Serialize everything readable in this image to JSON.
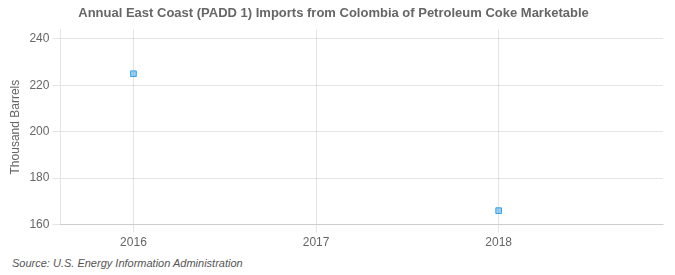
{
  "chart_data": {
    "type": "scatter",
    "title": "Annual East Coast (PADD 1) Imports from Colombia of Petroleum Coke Marketable",
    "y_label": "Thousand Barrels",
    "annotations": [
      "Source: U.S. Energy Information Administration"
    ],
    "x": [
      2016,
      2018
    ],
    "values": [
      225,
      166
    ],
    "marker": "square",
    "xlim": [
      2015.6,
      2018.9
    ],
    "xticks": [
      2016,
      2017,
      2018
    ],
    "ylim": [
      160,
      244
    ],
    "yticks": [
      160,
      180,
      200,
      220,
      240
    ],
    "grid": true
  }
}
